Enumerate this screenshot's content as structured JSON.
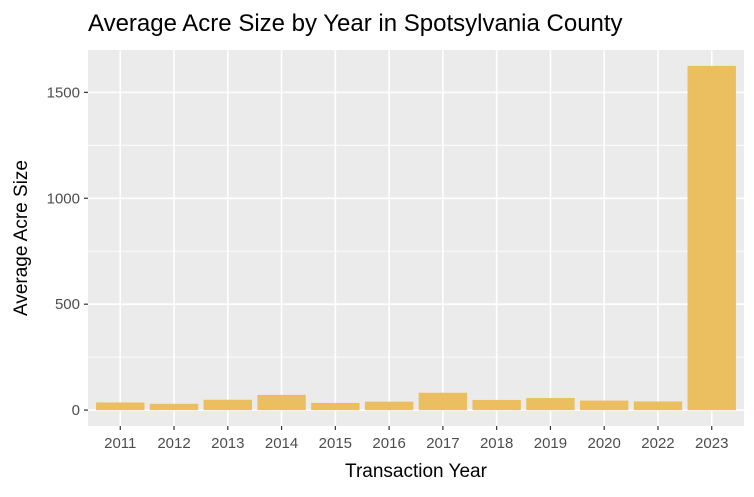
{
  "colors": {
    "panel": "#ebebeb",
    "grid_major": "#ffffff",
    "bar": "#EBBE60",
    "tick": "#333333"
  },
  "chart_data": {
    "type": "bar",
    "title": "Average Acre Size by Year in Spotsylvania County",
    "xlabel": "Transaction Year",
    "ylabel": "Average Acre Size",
    "categories": [
      "2011",
      "2012",
      "2013",
      "2014",
      "2015",
      "2016",
      "2017",
      "2018",
      "2019",
      "2020",
      "2022",
      "2023"
    ],
    "values": [
      36,
      30,
      49,
      72,
      34,
      40,
      82,
      48,
      57,
      45,
      41,
      1625
    ],
    "ylim": [
      -75,
      1700
    ],
    "yticks": [
      0,
      500,
      1000,
      1500
    ],
    "grid": true,
    "legend": "none"
  }
}
